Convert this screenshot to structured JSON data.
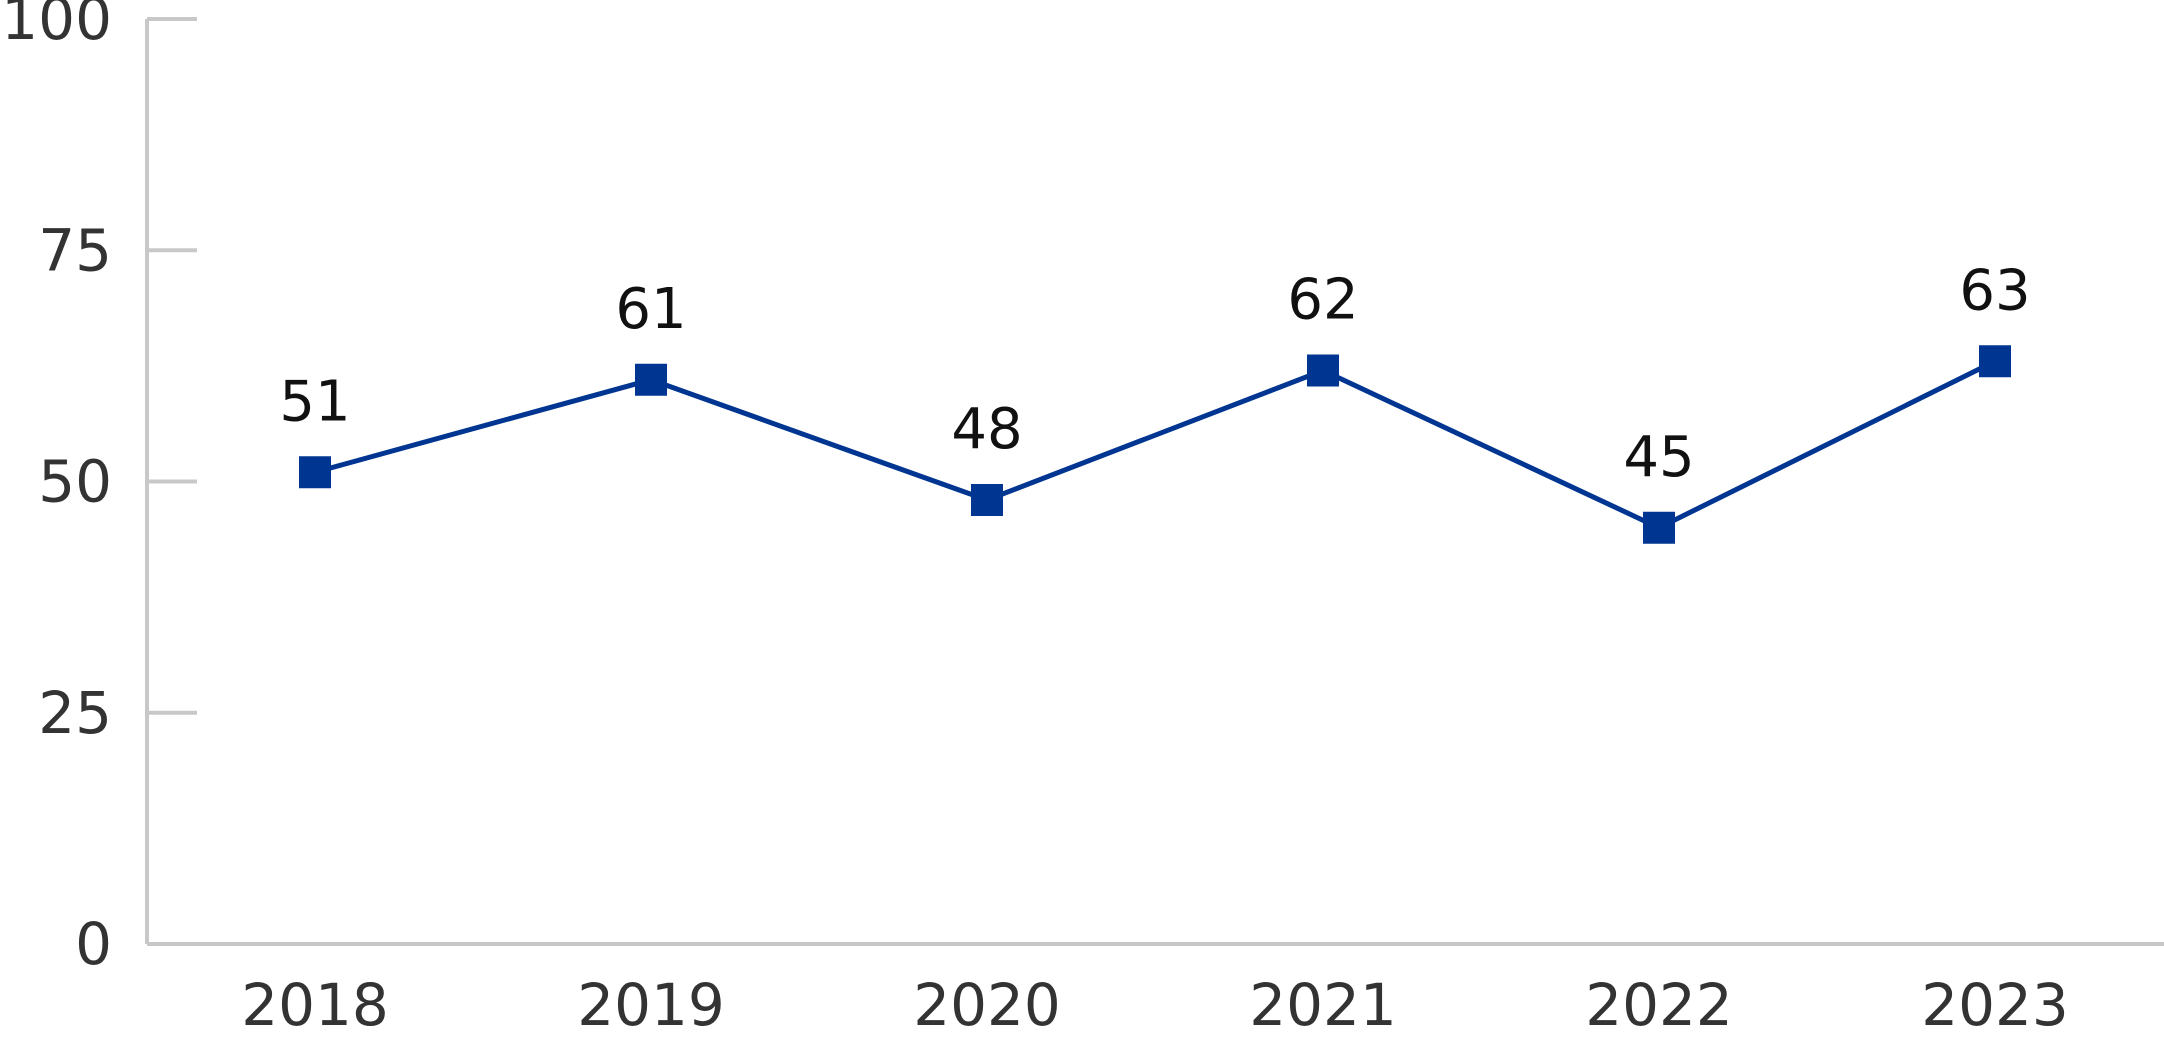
{
  "chart_data": {
    "type": "line",
    "categories": [
      "2018",
      "2019",
      "2020",
      "2021",
      "2022",
      "2023"
    ],
    "values": [
      51,
      61,
      48,
      62,
      45,
      63
    ],
    "data_labels": [
      "51",
      "61",
      "48",
      "62",
      "45",
      "63"
    ],
    "yticks": [
      "0",
      "25",
      "50",
      "75",
      "100"
    ],
    "ylim": [
      0,
      100
    ],
    "grid": false,
    "marker": "square",
    "colors": {
      "series": "#003591",
      "axis": "#c8c8c8"
    }
  }
}
